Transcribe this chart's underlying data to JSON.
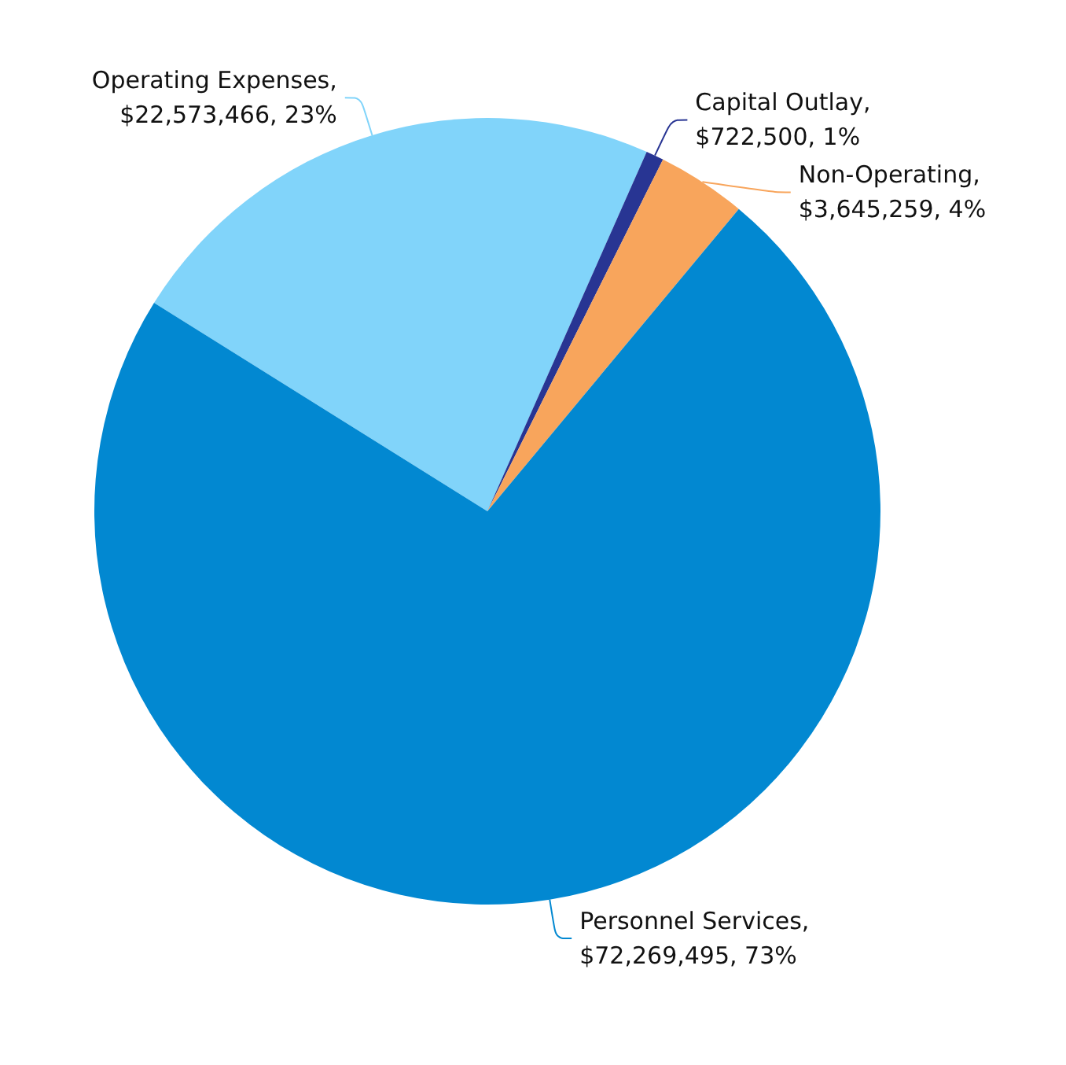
{
  "chart_data": {
    "type": "pie",
    "categories": [
      "Operating Expenses",
      "Capital Outlay",
      "Non-Operating",
      "Personnel Services"
    ],
    "values": [
      22573466,
      722500,
      3645259,
      72269495
    ],
    "value_labels": [
      ", $22,573,466, 23%",
      ", $722,500, 1%",
      ", $3,645,259, 4%",
      ", $72,269,495, 73%"
    ],
    "colors": [
      "#81d4fa",
      "#283593",
      "#f8a55c",
      "#0288d1"
    ],
    "legend": false
  }
}
